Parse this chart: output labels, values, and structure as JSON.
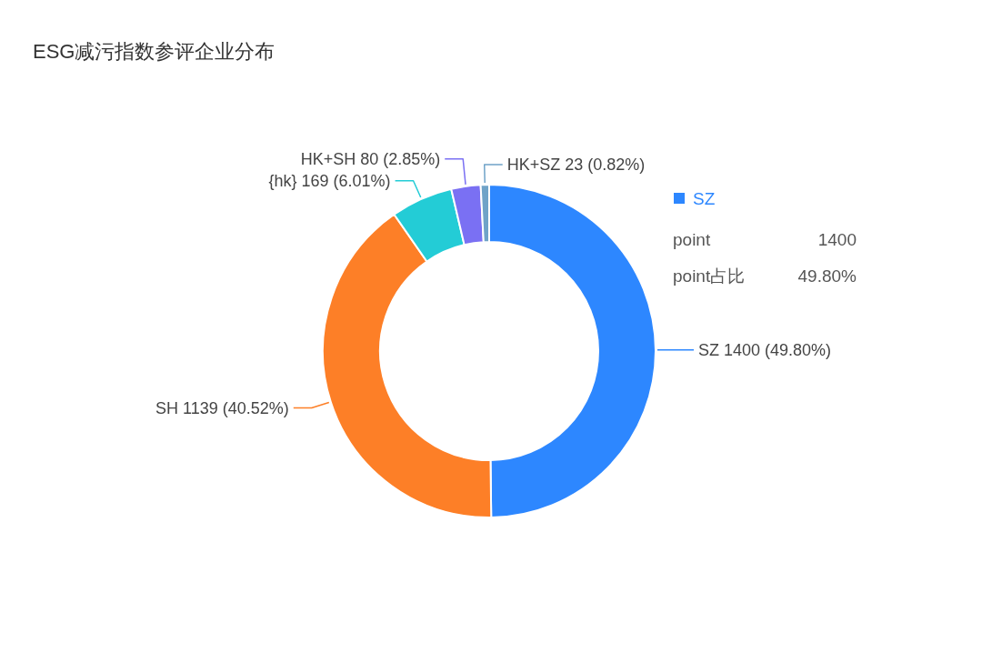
{
  "chart_data": {
    "type": "donut",
    "title": "ESG减污指数参评企业分布",
    "categories": [
      "SZ",
      "SH",
      "{hk}",
      "HK+SH",
      "HK+SZ"
    ],
    "values": [
      1400,
      1139,
      169,
      80,
      23
    ],
    "value_labels": [
      "1400 (49.80%)",
      "1139 (40.52%)",
      "169 (6.01%)",
      "80 (2.85%)",
      "23 (0.82%)"
    ],
    "colors": [
      "#2d87ff",
      "#fd7f27",
      "#23ccd6",
      "#7a70f3",
      "#6fa3c8"
    ],
    "annotations": [
      "SZ",
      "point",
      "1400",
      "point占比",
      "49.80%"
    ]
  }
}
